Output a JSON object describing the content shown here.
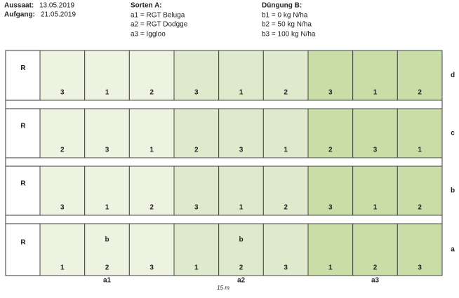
{
  "header": {
    "sowing": {
      "label": "Aussaat:",
      "value": "13.05.2019"
    },
    "emergence": {
      "label": "Aufgang:",
      "value": "21.05.2019"
    },
    "varieties": {
      "title": "Sorten A:",
      "items": [
        "a1 = RGT Beluga",
        "a2 = RGT Dodgge",
        "a3 = Iggloo"
      ]
    },
    "fertilization": {
      "title": "Düngung B:",
      "items": [
        "b1 = 0 kg N/ha",
        "b2 = 50 kg N/ha",
        "b3 = 100 kg N/ha"
      ]
    }
  },
  "field": {
    "rows": [
      {
        "reference": "R",
        "label": "d",
        "plots": [
          {
            "number": "3"
          },
          {
            "number": "1"
          },
          {
            "number": "2"
          },
          {
            "number": "3"
          },
          {
            "number": "1"
          },
          {
            "number": "2"
          },
          {
            "number": "3"
          },
          {
            "number": "1"
          },
          {
            "number": "2"
          }
        ]
      },
      {
        "reference": "R",
        "label": "c",
        "plots": [
          {
            "number": "2"
          },
          {
            "number": "3"
          },
          {
            "number": "1"
          },
          {
            "number": "2"
          },
          {
            "number": "3"
          },
          {
            "number": "1"
          },
          {
            "number": "2"
          },
          {
            "number": "3"
          },
          {
            "number": "1"
          }
        ]
      },
      {
        "reference": "R",
        "label": "b",
        "plots": [
          {
            "number": "3"
          },
          {
            "number": "1"
          },
          {
            "number": "2"
          },
          {
            "number": "3"
          },
          {
            "number": "1"
          },
          {
            "number": "2"
          },
          {
            "number": "3"
          },
          {
            "number": "1"
          },
          {
            "number": "2"
          }
        ]
      },
      {
        "reference": "R",
        "label": "a",
        "plots": [
          {
            "number": "1"
          },
          {
            "number": "2",
            "note": "b"
          },
          {
            "number": "3"
          },
          {
            "number": "1"
          },
          {
            "number": "2",
            "note": "b"
          },
          {
            "number": "3"
          },
          {
            "number": "1"
          },
          {
            "number": "2"
          },
          {
            "number": "3"
          }
        ]
      }
    ],
    "groups": [
      "a1",
      "a2",
      "a3"
    ],
    "scale": "15 m"
  }
}
